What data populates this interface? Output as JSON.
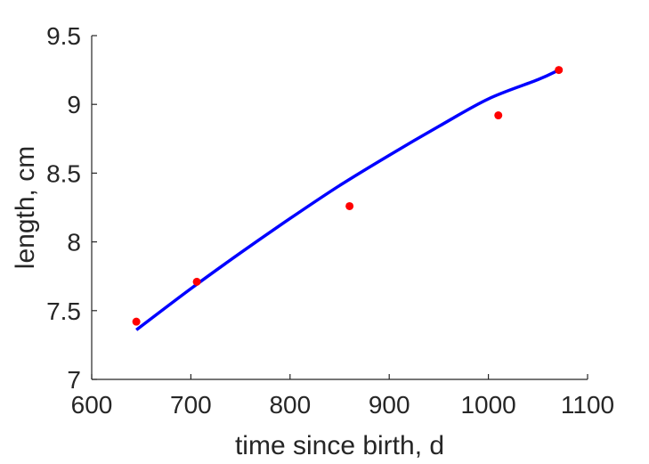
{
  "chart_data": {
    "type": "line",
    "title": "",
    "xlabel": "time since birth, d",
    "ylabel": "length, cm",
    "xlim": [
      600,
      1100
    ],
    "ylim": [
      7,
      9.5
    ],
    "xticks": [
      600,
      700,
      800,
      900,
      1000,
      1100
    ],
    "yticks": [
      7,
      7.5,
      8,
      8.5,
      9,
      9.5
    ],
    "xtick_labels": [
      "600",
      "700",
      "800",
      "900",
      "1000",
      "1100"
    ],
    "ytick_labels": [
      "7",
      "7.5",
      "8",
      "8.5",
      "9",
      "9.5"
    ],
    "grid": false,
    "box": "left-bottom axes only",
    "series": [
      {
        "kind": "scatter",
        "color": "#ff0000",
        "points": [
          {
            "x": 645,
            "y": 7.42
          },
          {
            "x": 706,
            "y": 7.71
          },
          {
            "x": 860,
            "y": 8.26
          },
          {
            "x": 1010,
            "y": 8.92
          },
          {
            "x": 1071,
            "y": 9.25
          }
        ]
      },
      {
        "kind": "line",
        "color": "#0000ff",
        "points": [
          {
            "x": 645,
            "y": 7.36
          },
          {
            "x": 700,
            "y": 7.66
          },
          {
            "x": 750,
            "y": 7.92
          },
          {
            "x": 800,
            "y": 8.17
          },
          {
            "x": 850,
            "y": 8.41
          },
          {
            "x": 900,
            "y": 8.63
          },
          {
            "x": 950,
            "y": 8.84
          },
          {
            "x": 1000,
            "y": 9.04
          },
          {
            "x": 1050,
            "y": 9.18
          },
          {
            "x": 1071,
            "y": 9.25
          }
        ]
      }
    ]
  }
}
